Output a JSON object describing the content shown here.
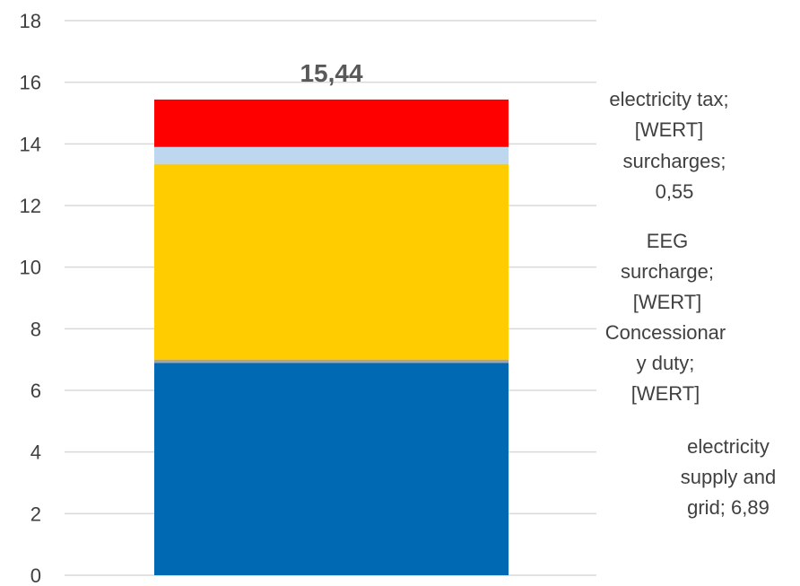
{
  "chart_data": {
    "type": "bar",
    "stacked": true,
    "categories": [
      ""
    ],
    "ylim": [
      0,
      18
    ],
    "yticks": [
      0,
      2,
      4,
      6,
      8,
      10,
      12,
      14,
      16,
      18
    ],
    "grid": true,
    "total_label": "15,44",
    "series": [
      {
        "name": "electricity supply and grid",
        "values": [
          6.89
        ],
        "color": "#0069b4",
        "label_lines": [
          "electricity",
          "supply and",
          "grid; 6,89"
        ]
      },
      {
        "name": "Concessionary duty",
        "values": [
          0.11
        ],
        "color": "#a5a5a5",
        "label_lines": [
          "Concessionar",
          "y duty;",
          "[WERT]"
        ]
      },
      {
        "name": "EEG surcharge",
        "values": [
          6.35
        ],
        "color": "#ffcc00",
        "label_lines": [
          "EEG",
          "surcharge;",
          "[WERT]"
        ]
      },
      {
        "name": "surcharges",
        "values": [
          0.55
        ],
        "color": "#bdd7ee",
        "label_lines": [
          "surcharges;",
          "0,55"
        ]
      },
      {
        "name": "electricity tax",
        "values": [
          1.54
        ],
        "color": "#ff0000",
        "label_lines": [
          "electricity tax;",
          "[WERT]"
        ]
      }
    ]
  }
}
